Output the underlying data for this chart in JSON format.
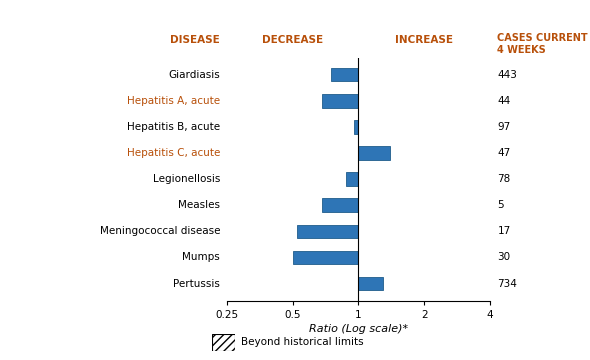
{
  "diseases": [
    "Giardiasis",
    "Hepatitis A, acute",
    "Hepatitis B, acute",
    "Hepatitis C, acute",
    "Legionellosis",
    "Measles",
    "Meningococcal disease",
    "Mumps",
    "Pertussis"
  ],
  "ratios": [
    0.75,
    0.68,
    0.95,
    1.4,
    0.88,
    0.68,
    0.52,
    0.5,
    1.3
  ],
  "cases": [
    443,
    44,
    97,
    47,
    78,
    5,
    17,
    30,
    734
  ],
  "bar_color": "#2e75b6",
  "bar_edge_color": "#1f5c8b",
  "disease_colors": [
    "#000000",
    "#b8500a",
    "#000000",
    "#b8500a",
    "#000000",
    "#000000",
    "#000000",
    "#000000",
    "#000000"
  ],
  "header_color": "#b8500a",
  "header_disease": "DISEASE",
  "header_decrease": "DECREASE",
  "header_increase": "INCREASE",
  "header_cases_line1": "CASES CURRENT",
  "header_cases_line2": "4 WEEKS",
  "xlabel": "Ratio (Log scale)*",
  "legend_label": "Beyond historical limits",
  "xtick_labels": [
    "0.25",
    "0.5",
    "1",
    "2",
    "4"
  ],
  "xtick_vals": [
    -2,
    -1,
    0,
    1,
    2
  ]
}
